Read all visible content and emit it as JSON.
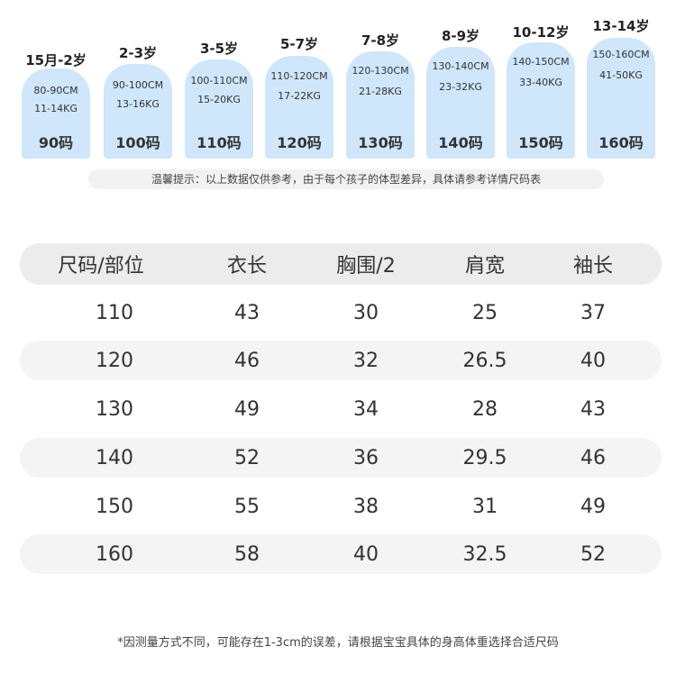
{
  "size_cards": [
    {
      "age": "15月-2岁",
      "height": "80-90CM",
      "weight": "11-14KG",
      "code": "90码"
    },
    {
      "age": "2-3岁",
      "height": "90-100CM",
      "weight": "13-16KG",
      "code": "100码"
    },
    {
      "age": "3-5岁",
      "height": "100-110CM",
      "weight": "15-20KG",
      "code": "110码"
    },
    {
      "age": "5-7岁",
      "height": "110-120CM",
      "weight": "17-22KG",
      "code": "120码"
    },
    {
      "age": "7-8岁",
      "height": "120-130CM",
      "weight": "21-28KG",
      "code": "130码"
    },
    {
      "age": "8-9岁",
      "height": "130-140CM",
      "weight": "23-32KG",
      "code": "140码"
    },
    {
      "age": "10-12岁",
      "height": "140-150CM",
      "weight": "33-40KG",
      "code": "150码"
    },
    {
      "age": "13-14岁",
      "height": "150-160CM",
      "weight": "41-50KG",
      "code": "160码"
    }
  ],
  "tip_text": "温馨提示：以上数据仅供参考，由于每个孩子的体型差异，具体请参考详情尺码表",
  "table": {
    "headers": [
      "尺码/部位",
      "衣长",
      "胸围/2",
      "肩宽",
      "袖长"
    ],
    "rows": [
      [
        "110",
        "43",
        "30",
        "25",
        "37"
      ],
      [
        "120",
        "46",
        "32",
        "26.5",
        "40"
      ],
      [
        "130",
        "49",
        "34",
        "28",
        "43"
      ],
      [
        "140",
        "52",
        "36",
        "29.5",
        "46"
      ],
      [
        "150",
        "55",
        "38",
        "31",
        "49"
      ],
      [
        "160",
        "58",
        "40",
        "32.5",
        "52"
      ]
    ]
  },
  "colors": {
    "card_bg": "#cfe6fb",
    "row_shade": "#f4f4f4",
    "header_bg": "#ececec"
  },
  "footnote": "*因测量方式不同，可能存在1-3cm的误差，请根据宝宝具体的身高体重选择合适尺码"
}
